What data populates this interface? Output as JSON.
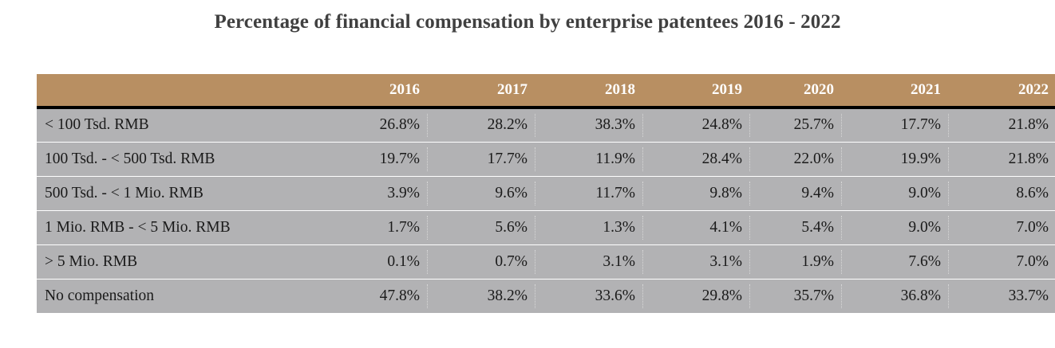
{
  "chart_data": {
    "type": "table",
    "title": "Percentage of financial compensation by enterprise patentees 2016 - 2022",
    "columns": [
      "",
      "2016",
      "2017",
      "2018",
      "2019",
      "2020",
      "2021",
      "2022"
    ],
    "rows": [
      {
        "label": "< 100 Tsd. RMB",
        "values": [
          "26.8%",
          "28.2%",
          "38.3%",
          "24.8%",
          "25.7%",
          "17.7%",
          "21.8%"
        ]
      },
      {
        "label": "100 Tsd. - < 500 Tsd. RMB",
        "values": [
          "19.7%",
          "17.7%",
          "11.9%",
          "28.4%",
          "22.0%",
          "19.9%",
          "21.8%"
        ]
      },
      {
        "label": "500 Tsd. - < 1 Mio. RMB",
        "values": [
          "3.9%",
          "9.6%",
          "11.7%",
          "9.8%",
          "9.4%",
          "9.0%",
          "8.6%"
        ]
      },
      {
        "label": "1 Mio. RMB - < 5 Mio. RMB",
        "values": [
          "1.7%",
          "5.6%",
          "1.3%",
          "4.1%",
          "5.4%",
          "9.0%",
          "7.0%"
        ]
      },
      {
        "label": "> 5 Mio. RMB",
        "values": [
          "0.1%",
          "0.7%",
          "3.1%",
          "3.1%",
          "1.9%",
          "7.6%",
          "7.0%"
        ]
      },
      {
        "label": "No compensation",
        "values": [
          "47.8%",
          "38.2%",
          "33.6%",
          "29.8%",
          "35.7%",
          "36.8%",
          "33.7%"
        ]
      }
    ]
  },
  "colors": {
    "header_bg": "#b88f62",
    "header_text": "#ffffff",
    "row_bg": "#b2b2b4",
    "header_rule": "#000000",
    "title_text": "#404040"
  }
}
